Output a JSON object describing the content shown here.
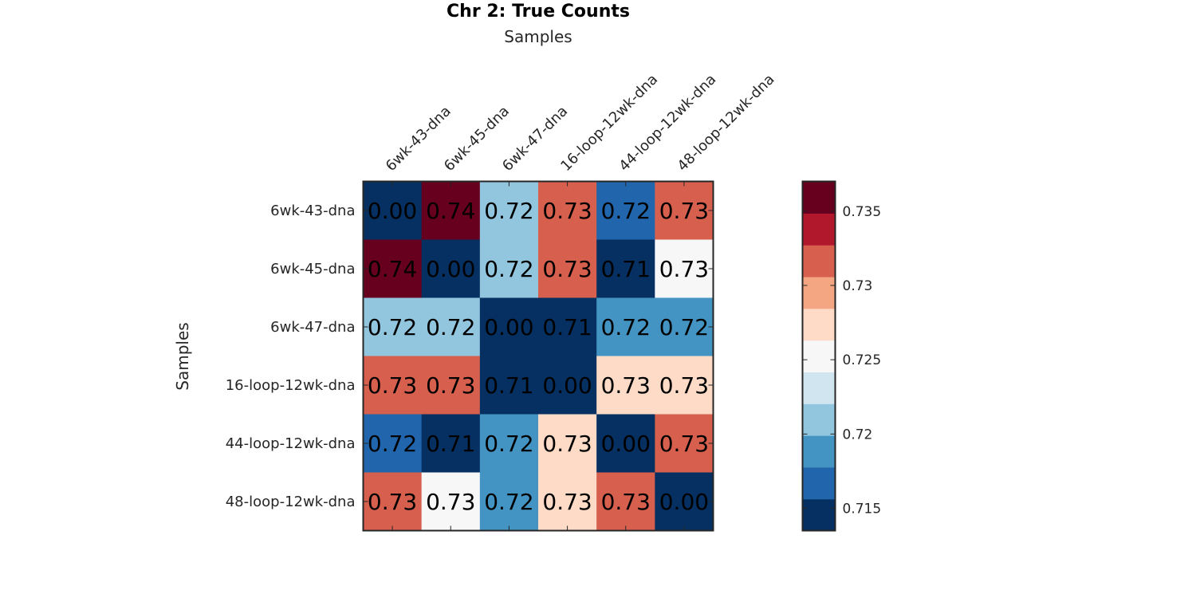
{
  "chart_data": {
    "type": "heatmap",
    "title": "Chr 2: True Counts",
    "xlabel": "Samples",
    "ylabel": "Samples",
    "x_categories": [
      "6wk-43-dna",
      "6wk-45-dna",
      "6wk-47-dna",
      "16-loop-12wk-dna",
      "44-loop-12wk-dna",
      "48-loop-12wk-dna"
    ],
    "y_categories": [
      "6wk-43-dna",
      "6wk-45-dna",
      "6wk-47-dna",
      "16-loop-12wk-dna",
      "44-loop-12wk-dna",
      "48-loop-12wk-dna"
    ],
    "values": [
      [
        0.0,
        0.737,
        0.722,
        0.732,
        0.717,
        0.732
      ],
      [
        0.737,
        0.0,
        0.722,
        0.732,
        0.714,
        0.726
      ],
      [
        0.722,
        0.722,
        0.0,
        0.714,
        0.718,
        0.718
      ],
      [
        0.732,
        0.732,
        0.714,
        0.0,
        0.728,
        0.728
      ],
      [
        0.717,
        0.714,
        0.718,
        0.728,
        0.0,
        0.732
      ],
      [
        0.732,
        0.726,
        0.718,
        0.728,
        0.732,
        0.0
      ]
    ],
    "cell_labels": [
      [
        "0.00",
        "0.74",
        "0.72",
        "0.73",
        "0.72",
        "0.73"
      ],
      [
        "0.74",
        "0.00",
        "0.72",
        "0.73",
        "0.71",
        "0.73"
      ],
      [
        "0.72",
        "0.72",
        "0.00",
        "0.71",
        "0.72",
        "0.72"
      ],
      [
        "0.73",
        "0.73",
        "0.71",
        "0.00",
        "0.73",
        "0.73"
      ],
      [
        "0.72",
        "0.71",
        "0.72",
        "0.73",
        "0.00",
        "0.73"
      ],
      [
        "0.73",
        "0.73",
        "0.72",
        "0.73",
        "0.73",
        "0.00"
      ]
    ],
    "colorbar": {
      "range": [
        0.7135,
        0.737
      ],
      "ticks": [
        0.715,
        0.72,
        0.725,
        0.73,
        0.735
      ],
      "tick_labels": [
        "0.715",
        "0.72",
        "0.725",
        "0.73",
        "0.735"
      ],
      "colors": [
        "#053061",
        "#2166ac",
        "#4393c3",
        "#92c5de",
        "#d1e5f0",
        "#f7f7f7",
        "#fddbc7",
        "#f4a582",
        "#d6604d",
        "#b2182b",
        "#67001f"
      ]
    },
    "legend": "colorbar-right",
    "grid": false
  }
}
